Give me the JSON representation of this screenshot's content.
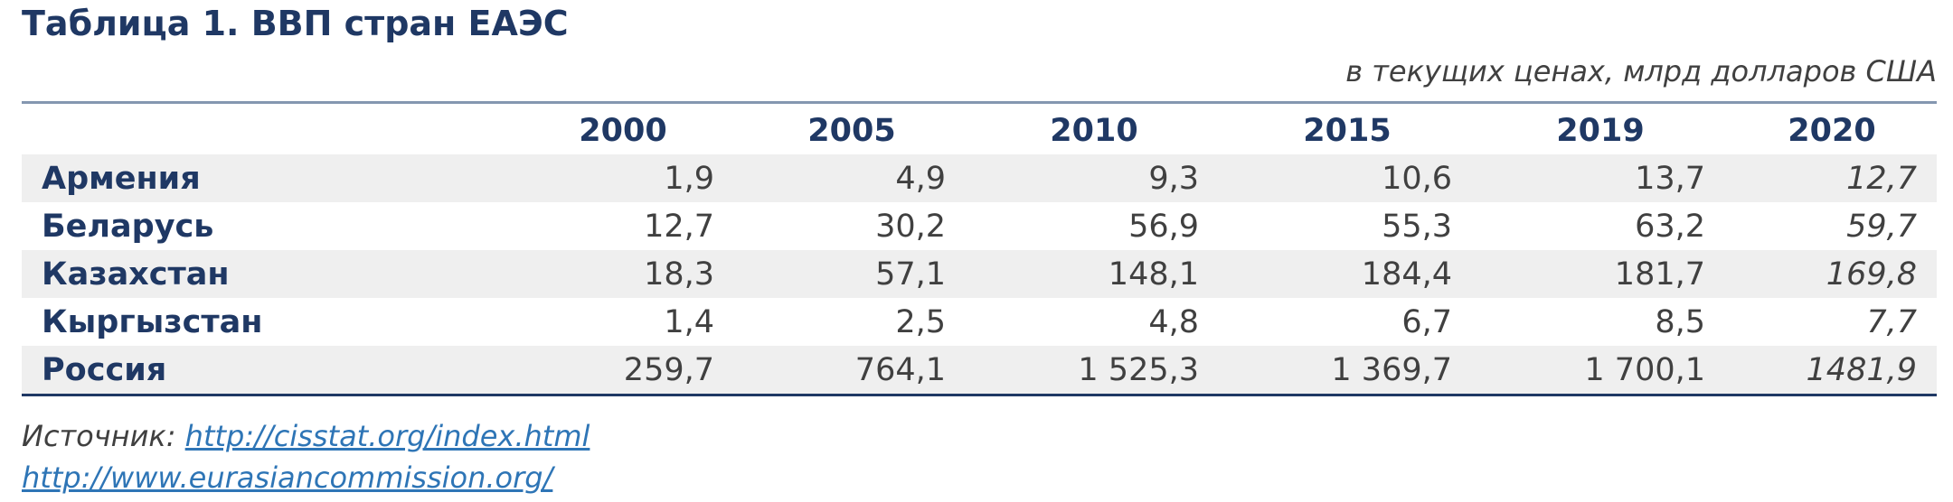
{
  "title": "Таблица 1. ВВП стран ЕАЭС",
  "unit_note": "в текущих ценах, млрд долларов США",
  "table": {
    "columns": [
      "",
      "2000",
      "2005",
      "2010",
      "2015",
      "2019",
      "2020"
    ],
    "rows": [
      {
        "name": "Армения",
        "values": [
          "1,9",
          "4,9",
          "9,3",
          "10,6",
          "13,7",
          "12,7"
        ]
      },
      {
        "name": "Беларусь",
        "values": [
          "12,7",
          "30,2",
          "56,9",
          "55,3",
          "63,2",
          "59,7"
        ]
      },
      {
        "name": "Казахстан",
        "values": [
          "18,3",
          "57,1",
          "148,1",
          "184,4",
          "181,7",
          "169,8"
        ]
      },
      {
        "name": "Кыргызстан",
        "values": [
          "1,4",
          "2,5",
          "4,8",
          "6,7",
          "8,5",
          "7,7"
        ]
      },
      {
        "name": "Россия",
        "values": [
          "259,7",
          "764,1",
          "1 525,3",
          "1 369,7",
          "1 700,1",
          "1481,9"
        ]
      }
    ]
  },
  "source": {
    "label": "Источник: ",
    "link1": "http://cisstat.org/index.html",
    "link2": "http://www.eurasiancommission.org/"
  },
  "colors": {
    "heading": "#1f3864",
    "text": "#404040",
    "link": "#2e75b6",
    "row_shade": "#efefef"
  }
}
